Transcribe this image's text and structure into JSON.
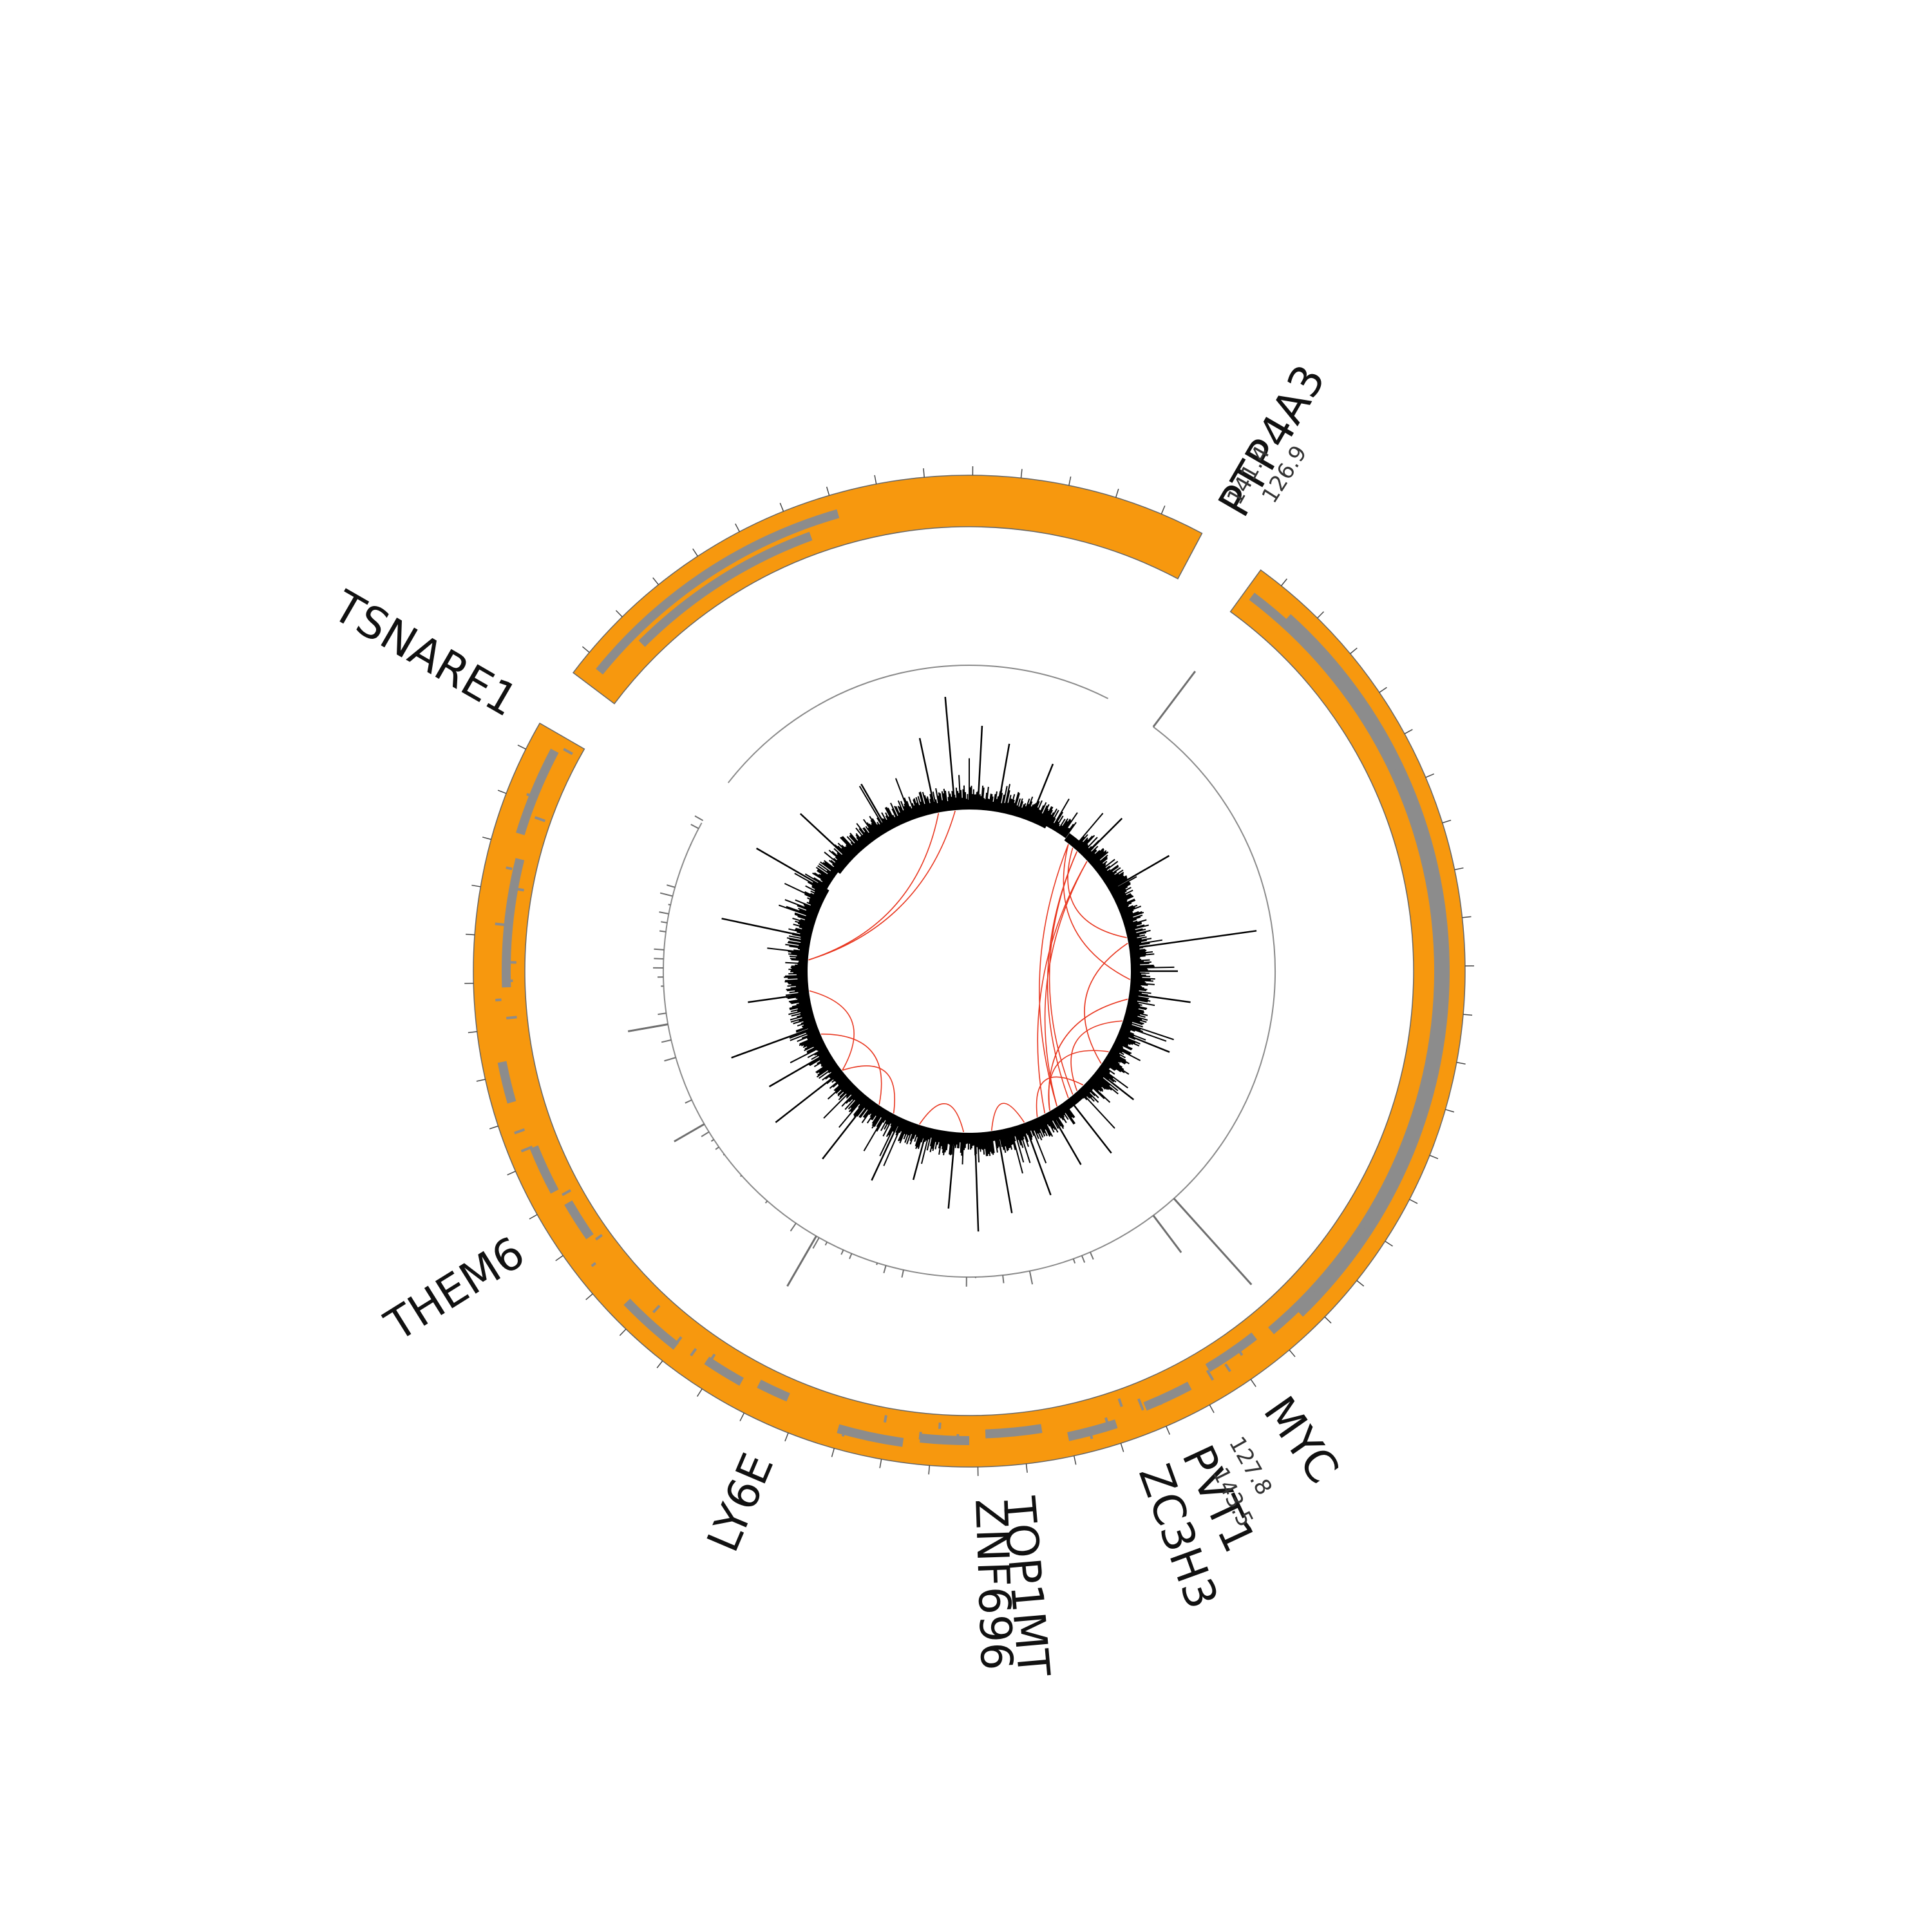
{
  "colors": {
    "ideogram_fill": "#F7980E",
    "ideogram_stroke": "#666666",
    "gene_track": "#8C8C8C",
    "coverage": "#000000",
    "outer_track": "#6E6E6E",
    "links": "#E8361F",
    "guide_ring": "#8A8A8A"
  },
  "segments": [
    {
      "name": "main",
      "start_deg": 36,
      "end_deg": 300
    },
    {
      "name": "small",
      "start_deg": 307,
      "end_deg": 388
    }
  ],
  "boundary_labels": [
    {
      "id": "top",
      "deg": 31,
      "values": [
        "141.4",
        "126.9"
      ]
    },
    {
      "id": "bottom",
      "deg": 152,
      "values": [
        "127.8",
        "143.5"
      ]
    }
  ],
  "gene_labels": [
    {
      "name": "PTP4A3",
      "deg": 30
    },
    {
      "name": "MYC",
      "deg": 145
    },
    {
      "name": "PVT1",
      "deg": 155
    },
    {
      "name": "ZC3H3",
      "deg": 160
    },
    {
      "name": "TOP1MT",
      "deg": 175
    },
    {
      "name": "ZNF696",
      "deg": 178
    },
    {
      "name": "LY6E",
      "deg": 203
    },
    {
      "name": "THEM6",
      "deg": 238
    },
    {
      "name": "TSNARE1",
      "deg": 300
    }
  ],
  "gene_blocks": [
    {
      "start": 309,
      "end": 344
    },
    {
      "start": 315,
      "end": 340
    },
    {
      "start": 37,
      "end": 140
    },
    {
      "start": 42,
      "end": 136
    },
    {
      "start": 142,
      "end": 149
    },
    {
      "start": 152,
      "end": 158
    },
    {
      "start": 162,
      "end": 168
    },
    {
      "start": 171,
      "end": 178
    },
    {
      "start": 180,
      "end": 186
    },
    {
      "start": 188,
      "end": 196
    },
    {
      "start": 203,
      "end": 207
    },
    {
      "start": 209,
      "end": 214
    },
    {
      "start": 218,
      "end": 226
    },
    {
      "start": 235,
      "end": 240
    },
    {
      "start": 242,
      "end": 248
    },
    {
      "start": 254,
      "end": 259
    },
    {
      "start": 268,
      "end": 284
    },
    {
      "start": 287,
      "end": 298
    }
  ],
  "links": [
    {
      "a": 274,
      "b": 355
    },
    {
      "a": 274,
      "b": 349
    },
    {
      "a": 263,
      "b": 232
    },
    {
      "a": 247,
      "b": 214
    },
    {
      "a": 232,
      "b": 208
    },
    {
      "a": 198,
      "b": 182
    },
    {
      "a": 47,
      "b": 152
    },
    {
      "a": 47,
      "b": 147
    },
    {
      "a": 42,
      "b": 142
    },
    {
      "a": 42,
      "b": 140
    },
    {
      "a": 38,
      "b": 147
    },
    {
      "a": 38,
      "b": 93
    },
    {
      "a": 40,
      "b": 78
    },
    {
      "a": 80,
      "b": 125
    },
    {
      "a": 108,
      "b": 138
    },
    {
      "a": 120,
      "b": 150
    },
    {
      "a": 100,
      "b": 150
    },
    {
      "a": 135,
      "b": 155
    },
    {
      "a": 160,
      "b": 172
    }
  ],
  "coverage_spikes": [
    {
      "deg": 355,
      "val": 0.75
    },
    {
      "deg": 3,
      "val": 0.55
    },
    {
      "deg": 10,
      "val": 0.45
    },
    {
      "deg": 22,
      "val": 0.4
    },
    {
      "deg": 45,
      "val": 0.35
    },
    {
      "deg": 60,
      "val": 0.45
    },
    {
      "deg": 82,
      "val": 0.85
    },
    {
      "deg": 90,
      "val": 0.3
    },
    {
      "deg": 98,
      "val": 0.4
    },
    {
      "deg": 112,
      "val": 0.35
    },
    {
      "deg": 128,
      "val": 0.3
    },
    {
      "deg": 142,
      "val": 0.45
    },
    {
      "deg": 150,
      "val": 0.4
    },
    {
      "deg": 160,
      "val": 0.5
    },
    {
      "deg": 170,
      "val": 0.55
    },
    {
      "deg": 178,
      "val": 0.65
    },
    {
      "deg": 185,
      "val": 0.5
    },
    {
      "deg": 195,
      "val": 0.35
    },
    {
      "deg": 205,
      "val": 0.45
    },
    {
      "deg": 218,
      "val": 0.5
    },
    {
      "deg": 232,
      "val": 0.55
    },
    {
      "deg": 240,
      "val": 0.45
    },
    {
      "deg": 250,
      "val": 0.6
    },
    {
      "deg": 262,
      "val": 0.4
    },
    {
      "deg": 282,
      "val": 0.6
    },
    {
      "deg": 300,
      "val": 0.55
    },
    {
      "deg": 313,
      "val": 0.45
    },
    {
      "deg": 330,
      "val": 0.35
    },
    {
      "deg": 348,
      "val": 0.5
    }
  ],
  "outer_track_features": [
    {
      "deg": 37,
      "val": 0.6
    },
    {
      "deg": 138,
      "val": 1.0
    },
    {
      "deg": 143,
      "val": 0.4
    },
    {
      "deg": 210,
      "val": 0.5
    },
    {
      "deg": 240,
      "val": 0.3
    },
    {
      "deg": 260,
      "val": 0.35
    }
  ]
}
